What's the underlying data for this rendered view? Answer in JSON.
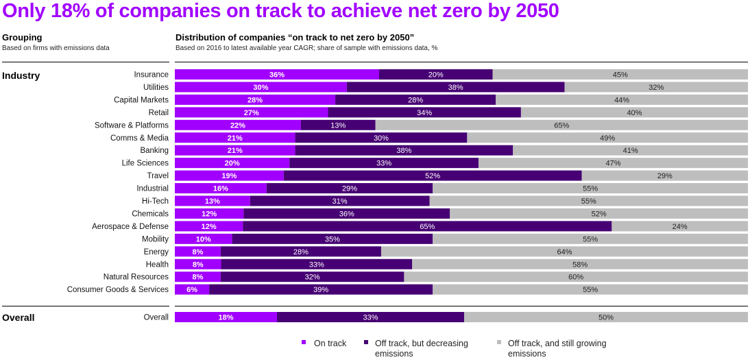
{
  "title": "Only 18% of companies on track to achieve net zero by 2050",
  "left_header": {
    "title": "Grouping",
    "subtitle": "Based on firms with emissions data"
  },
  "right_header": {
    "title": "Distribution of companies “on track to net zero by 2050”",
    "subtitle": "Based on 2016 to latest available year CAGR; share of sample with emissions data, %"
  },
  "sections": {
    "industry": "Industry",
    "overall": "Overall"
  },
  "colors": {
    "on_track": "#A100FF",
    "decreasing": "#460073",
    "growing": "#BEBEBE",
    "title": "#A100FF"
  },
  "legend": [
    {
      "label": "On track",
      "color": "#A100FF"
    },
    {
      "label": "Off track, but decreasing emissions",
      "color": "#460073"
    },
    {
      "label": "Off track, and still growing emissions",
      "color": "#BEBEBE"
    }
  ],
  "chart_data": {
    "type": "bar",
    "orientation": "horizontal",
    "stacked": true,
    "normalized": true,
    "title": "Distribution of companies “on track to net zero by 2050”",
    "categories": [
      "Insurance",
      "Utilities",
      "Capital Markets",
      "Retail",
      "Software & Platforms",
      "Comms & Media",
      "Banking",
      "Life Sciences",
      "Travel",
      "Industrial",
      "Hi-Tech",
      "Chemicals",
      "Aerospace & Defense",
      "Mobility",
      "Energy",
      "Health",
      "Natural Resources",
      "Consumer Goods & Services",
      "Overall"
    ],
    "series": [
      {
        "name": "On track",
        "values": [
          36,
          30,
          28,
          27,
          22,
          21,
          21,
          20,
          19,
          16,
          13,
          12,
          12,
          10,
          8,
          8,
          8,
          6,
          18
        ]
      },
      {
        "name": "Off track, but decreasing emissions",
        "values": [
          20,
          38,
          28,
          34,
          13,
          30,
          38,
          33,
          52,
          29,
          31,
          36,
          65,
          35,
          28,
          33,
          32,
          39,
          33
        ]
      },
      {
        "name": "Off track, and still growing emissions",
        "values": [
          45,
          32,
          44,
          40,
          65,
          49,
          41,
          47,
          29,
          55,
          55,
          52,
          24,
          55,
          64,
          58,
          60,
          55,
          50
        ]
      }
    ],
    "value_suffix": "%",
    "xlabel": "",
    "ylabel": "",
    "xlim": [
      0,
      100
    ]
  }
}
